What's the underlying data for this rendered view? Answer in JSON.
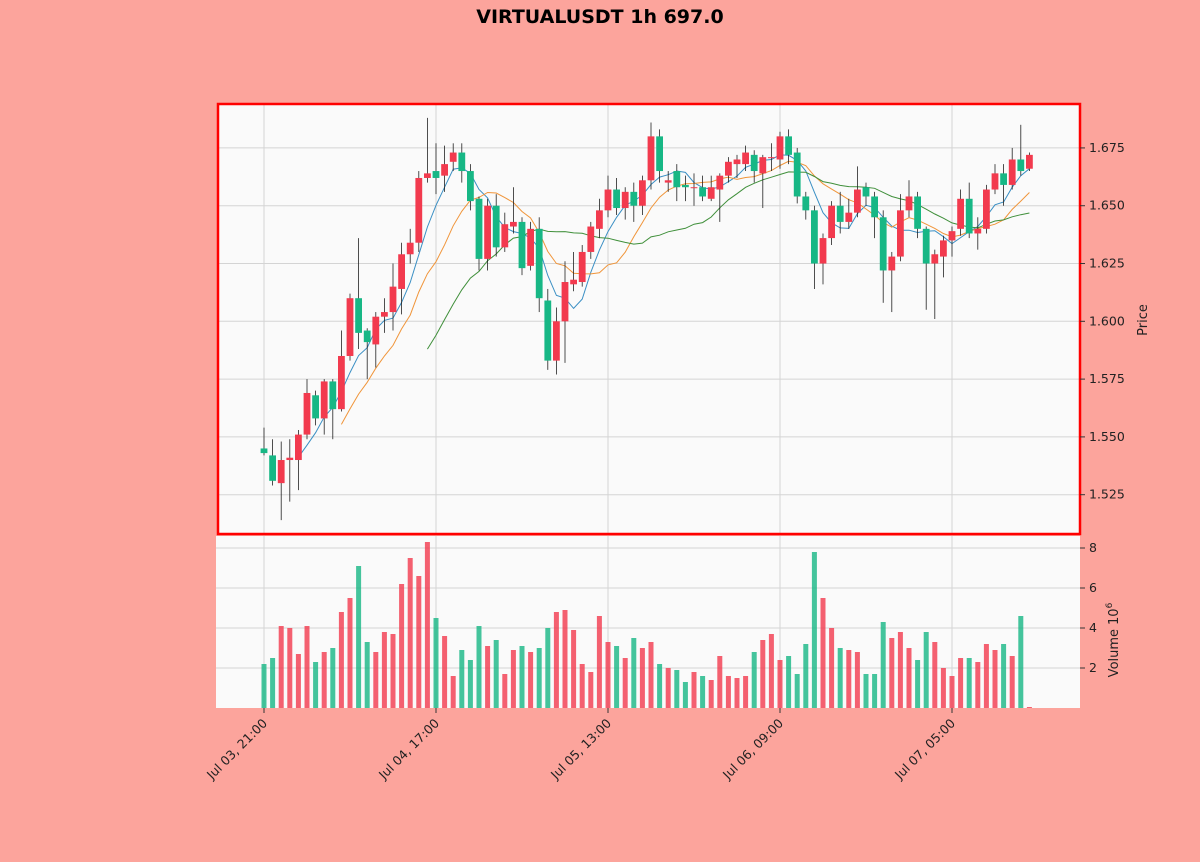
{
  "chart_data": {
    "type": "candlestick",
    "title": "VIRTUALUSDT 1h 697.0",
    "ylabel": "Price",
    "volume_ylabel": "Volume",
    "volume_unit": "10^6",
    "volume_exponent": "6",
    "interval": "1h",
    "start": "Jul 03, 21:00",
    "x_tick_labels": [
      "Jul 03, 21:00",
      "Jul 04, 17:00",
      "Jul 05, 13:00",
      "Jul 06, 09:00",
      "Jul 07, 05:00"
    ],
    "x_tick_index": [
      0,
      20,
      40,
      60,
      80
    ],
    "y_ticks": [
      "1.525",
      "1.550",
      "1.575",
      "1.600",
      "1.625",
      "1.650",
      "1.675"
    ],
    "ylim": [
      1.508,
      1.694
    ],
    "volume_ticks": [
      "2",
      "4",
      "6",
      "8"
    ],
    "volume_ylim": [
      0,
      8.6
    ],
    "moving_averages": [
      5,
      10,
      20
    ],
    "grid": true,
    "colors": {
      "up": "#f23a4e",
      "down": "#17b785",
      "ma": [
        "#3a8fc4",
        "#f0953a",
        "#3f8f3a"
      ],
      "background": "#fca49c",
      "panel": "#fafafa",
      "border": "#ff0000"
    },
    "ohlc": [
      [
        1.545,
        1.554,
        1.542,
        1.543
      ],
      [
        1.542,
        1.549,
        1.529,
        1.531
      ],
      [
        1.53,
        1.548,
        1.514,
        1.54
      ],
      [
        1.54,
        1.549,
        1.522,
        1.541
      ],
      [
        1.54,
        1.553,
        1.527,
        1.551
      ],
      [
        1.551,
        1.575,
        1.549,
        1.569
      ],
      [
        1.568,
        1.57,
        1.555,
        1.558
      ],
      [
        1.558,
        1.575,
        1.551,
        1.574
      ],
      [
        1.574,
        1.575,
        1.549,
        1.562
      ],
      [
        1.562,
        1.596,
        1.561,
        1.585
      ],
      [
        1.585,
        1.612,
        1.583,
        1.61
      ],
      [
        1.61,
        1.636,
        1.588,
        1.595
      ],
      [
        1.596,
        1.597,
        1.575,
        1.591
      ],
      [
        1.59,
        1.604,
        1.58,
        1.602
      ],
      [
        1.602,
        1.61,
        1.595,
        1.604
      ],
      [
        1.604,
        1.625,
        1.596,
        1.615
      ],
      [
        1.614,
        1.634,
        1.603,
        1.629
      ],
      [
        1.629,
        1.64,
        1.625,
        1.634
      ],
      [
        1.634,
        1.665,
        1.63,
        1.662
      ],
      [
        1.662,
        1.688,
        1.66,
        1.664
      ],
      [
        1.665,
        1.677,
        1.655,
        1.662
      ],
      [
        1.663,
        1.676,
        1.656,
        1.668
      ],
      [
        1.669,
        1.677,
        1.665,
        1.673
      ],
      [
        1.673,
        1.677,
        1.66,
        1.665
      ],
      [
        1.665,
        1.668,
        1.648,
        1.652
      ],
      [
        1.653,
        1.654,
        1.622,
        1.627
      ],
      [
        1.627,
        1.653,
        1.622,
        1.65
      ],
      [
        1.65,
        1.655,
        1.628,
        1.632
      ],
      [
        1.632,
        1.647,
        1.63,
        1.642
      ],
      [
        1.641,
        1.658,
        1.638,
        1.643
      ],
      [
        1.643,
        1.645,
        1.62,
        1.623
      ],
      [
        1.624,
        1.643,
        1.622,
        1.64
      ],
      [
        1.64,
        1.645,
        1.604,
        1.61
      ],
      [
        1.609,
        1.614,
        1.579,
        1.583
      ],
      [
        1.583,
        1.606,
        1.577,
        1.6
      ],
      [
        1.6,
        1.626,
        1.582,
        1.617
      ],
      [
        1.616,
        1.63,
        1.613,
        1.618
      ],
      [
        1.617,
        1.633,
        1.615,
        1.63
      ],
      [
        1.63,
        1.643,
        1.627,
        1.641
      ],
      [
        1.64,
        1.653,
        1.636,
        1.648
      ],
      [
        1.648,
        1.663,
        1.645,
        1.657
      ],
      [
        1.657,
        1.662,
        1.646,
        1.649
      ],
      [
        1.649,
        1.658,
        1.644,
        1.656
      ],
      [
        1.656,
        1.66,
        1.643,
        1.65
      ],
      [
        1.65,
        1.663,
        1.646,
        1.661
      ],
      [
        1.661,
        1.686,
        1.657,
        1.68
      ],
      [
        1.68,
        1.683,
        1.66,
        1.665
      ],
      [
        1.66,
        1.665,
        1.656,
        1.661
      ],
      [
        1.665,
        1.668,
        1.652,
        1.658
      ],
      [
        1.659,
        1.663,
        1.652,
        1.658
      ],
      [
        1.658,
        1.664,
        1.65,
        1.658
      ],
      [
        1.658,
        1.663,
        1.652,
        1.654
      ],
      [
        1.653,
        1.663,
        1.652,
        1.658
      ],
      [
        1.657,
        1.664,
        1.643,
        1.663
      ],
      [
        1.663,
        1.671,
        1.66,
        1.669
      ],
      [
        1.668,
        1.672,
        1.662,
        1.67
      ],
      [
        1.668,
        1.676,
        1.665,
        1.673
      ],
      [
        1.672,
        1.674,
        1.66,
        1.665
      ],
      [
        1.664,
        1.672,
        1.649,
        1.671
      ],
      [
        1.671,
        1.677,
        1.665,
        1.671
      ],
      [
        1.67,
        1.682,
        1.666,
        1.68
      ],
      [
        1.68,
        1.683,
        1.668,
        1.672
      ],
      [
        1.673,
        1.675,
        1.651,
        1.654
      ],
      [
        1.654,
        1.656,
        1.644,
        1.648
      ],
      [
        1.648,
        1.65,
        1.614,
        1.625
      ],
      [
        1.625,
        1.638,
        1.616,
        1.636
      ],
      [
        1.636,
        1.652,
        1.633,
        1.65
      ],
      [
        1.65,
        1.656,
        1.638,
        1.643
      ],
      [
        1.643,
        1.653,
        1.64,
        1.647
      ],
      [
        1.647,
        1.667,
        1.645,
        1.657
      ],
      [
        1.658,
        1.66,
        1.65,
        1.654
      ],
      [
        1.654,
        1.656,
        1.636,
        1.645
      ],
      [
        1.645,
        1.648,
        1.608,
        1.622
      ],
      [
        1.622,
        1.63,
        1.604,
        1.628
      ],
      [
        1.628,
        1.655,
        1.626,
        1.648
      ],
      [
        1.648,
        1.661,
        1.645,
        1.654
      ],
      [
        1.654,
        1.656,
        1.636,
        1.64
      ],
      [
        1.64,
        1.641,
        1.605,
        1.625
      ],
      [
        1.625,
        1.631,
        1.601,
        1.629
      ],
      [
        1.628,
        1.637,
        1.619,
        1.635
      ],
      [
        1.635,
        1.641,
        1.628,
        1.639
      ],
      [
        1.64,
        1.657,
        1.637,
        1.653
      ],
      [
        1.653,
        1.66,
        1.636,
        1.638
      ],
      [
        1.638,
        1.645,
        1.631,
        1.64
      ],
      [
        1.64,
        1.659,
        1.638,
        1.657
      ],
      [
        1.657,
        1.668,
        1.655,
        1.664
      ],
      [
        1.664,
        1.668,
        1.65,
        1.659
      ],
      [
        1.659,
        1.675,
        1.657,
        1.67
      ],
      [
        1.67,
        1.685,
        1.663,
        1.665
      ],
      [
        1.666,
        1.673,
        1.665,
        1.672
      ]
    ],
    "volume": [
      2.2,
      2.5,
      4.1,
      4.0,
      2.7,
      4.1,
      2.3,
      2.8,
      3.0,
      4.8,
      5.5,
      7.1,
      3.3,
      2.8,
      3.8,
      3.7,
      6.2,
      7.5,
      6.6,
      8.3,
      4.5,
      3.6,
      1.6,
      2.9,
      2.4,
      4.1,
      3.1,
      3.4,
      1.7,
      2.9,
      3.1,
      2.8,
      3.0,
      4.0,
      4.8,
      4.9,
      3.9,
      2.2,
      1.8,
      4.6,
      3.3,
      3.1,
      2.5,
      3.5,
      3.0,
      3.3,
      2.2,
      2.0,
      1.9,
      1.3,
      1.8,
      1.6,
      1.4,
      2.6,
      1.6,
      1.5,
      1.6,
      2.8,
      3.4,
      3.7,
      2.4,
      2.6,
      1.7,
      3.2,
      7.8,
      5.5,
      4.0,
      3.0,
      2.9,
      2.8,
      1.7,
      1.7,
      4.3,
      3.5,
      3.8,
      3.0,
      2.4,
      3.8,
      3.3,
      2.0,
      1.6,
      2.5,
      2.5,
      2.3,
      3.2,
      2.9,
      3.2,
      2.6,
      4.6,
      0.05
    ]
  }
}
